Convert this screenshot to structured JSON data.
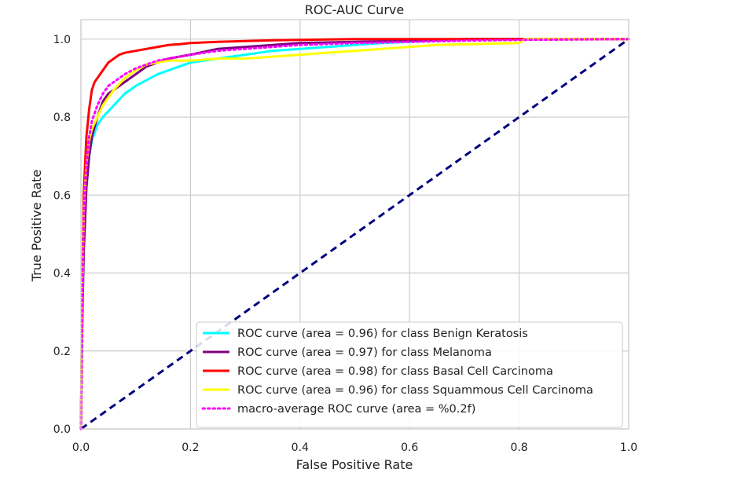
{
  "chart_data": {
    "type": "line",
    "title": "ROC-AUC Curve",
    "xlabel": "False Positive Rate",
    "ylabel": "True Positive Rate",
    "xlim": [
      0.0,
      1.0
    ],
    "ylim": [
      0.0,
      1.05
    ],
    "xticks": [
      0.0,
      0.2,
      0.4,
      0.6,
      0.8,
      1.0
    ],
    "xtick_labels": [
      "0.0",
      "0.2",
      "0.4",
      "0.6",
      "0.8",
      "1.0"
    ],
    "yticks": [
      0.0,
      0.2,
      0.4,
      0.6,
      0.8,
      1.0
    ],
    "ytick_labels": [
      "0.0",
      "0.2",
      "0.4",
      "0.6",
      "0.8",
      "1.0"
    ],
    "grid": true,
    "legend_position": "lower-right",
    "series": [
      {
        "name": "ROC curve (area = 0.96) for class Benign Keratosis",
        "color": "#00ffff",
        "style": "solid",
        "x": [
          0.0,
          0.002,
          0.005,
          0.01,
          0.015,
          0.02,
          0.03,
          0.04,
          0.06,
          0.08,
          0.1,
          0.12,
          0.14,
          0.16,
          0.18,
          0.2,
          0.25,
          0.3,
          0.35,
          0.4,
          0.45,
          0.5,
          0.55,
          0.6,
          0.65,
          0.7,
          0.8,
          1.0
        ],
        "y": [
          0.0,
          0.2,
          0.5,
          0.62,
          0.7,
          0.74,
          0.78,
          0.8,
          0.83,
          0.86,
          0.88,
          0.895,
          0.91,
          0.92,
          0.93,
          0.94,
          0.95,
          0.96,
          0.97,
          0.975,
          0.98,
          0.985,
          0.99,
          0.993,
          0.996,
          1.0,
          1.0,
          1.0
        ]
      },
      {
        "name": "ROC curve (area = 0.97) for class Melanoma",
        "color": "#800080",
        "style": "solid",
        "x": [
          0.0,
          0.002,
          0.005,
          0.01,
          0.015,
          0.02,
          0.03,
          0.04,
          0.05,
          0.06,
          0.07,
          0.08,
          0.1,
          0.12,
          0.14,
          0.16,
          0.18,
          0.2,
          0.25,
          0.3,
          0.35,
          0.4,
          0.5,
          0.6,
          0.7,
          0.8,
          1.0
        ],
        "y": [
          0.0,
          0.25,
          0.45,
          0.62,
          0.7,
          0.75,
          0.8,
          0.84,
          0.86,
          0.87,
          0.88,
          0.89,
          0.91,
          0.93,
          0.94,
          0.95,
          0.955,
          0.96,
          0.975,
          0.98,
          0.985,
          0.99,
          0.993,
          0.996,
          1.0,
          1.0,
          1.0
        ]
      },
      {
        "name": "ROC curve (area = 0.98) for class Basal Cell Carcinoma",
        "color": "#ff0000",
        "style": "solid",
        "x": [
          0.0,
          0.002,
          0.005,
          0.01,
          0.015,
          0.02,
          0.025,
          0.03,
          0.04,
          0.05,
          0.06,
          0.07,
          0.08,
          0.1,
          0.12,
          0.14,
          0.16,
          0.18,
          0.2,
          0.25,
          0.3,
          0.35,
          0.4,
          0.5,
          0.6,
          0.8,
          1.0
        ],
        "y": [
          0.0,
          0.3,
          0.6,
          0.75,
          0.82,
          0.87,
          0.89,
          0.9,
          0.92,
          0.94,
          0.95,
          0.96,
          0.965,
          0.97,
          0.975,
          0.98,
          0.985,
          0.987,
          0.99,
          0.993,
          0.995,
          0.997,
          0.998,
          1.0,
          1.0,
          1.0,
          1.0
        ]
      },
      {
        "name": "ROC curve (area = 0.96) for class Squammous Cell Carcinoma",
        "color": "#ffff00",
        "style": "solid",
        "x": [
          0.0,
          0.002,
          0.005,
          0.01,
          0.015,
          0.02,
          0.03,
          0.04,
          0.05,
          0.06,
          0.08,
          0.1,
          0.12,
          0.14,
          0.16,
          0.2,
          0.25,
          0.3,
          0.35,
          0.4,
          0.45,
          0.5,
          0.55,
          0.65,
          0.8,
          0.81,
          1.0
        ],
        "y": [
          0.0,
          0.3,
          0.55,
          0.68,
          0.74,
          0.77,
          0.8,
          0.83,
          0.85,
          0.87,
          0.9,
          0.92,
          0.935,
          0.94,
          0.945,
          0.945,
          0.95,
          0.95,
          0.955,
          0.96,
          0.965,
          0.97,
          0.975,
          0.985,
          0.99,
          1.0,
          1.0
        ]
      },
      {
        "name": "macro-average ROC curve (area = %0.2f)",
        "color": "#ff00ff",
        "style": "dotted",
        "x": [
          0.0,
          0.002,
          0.005,
          0.01,
          0.015,
          0.02,
          0.03,
          0.04,
          0.05,
          0.06,
          0.08,
          0.1,
          0.12,
          0.14,
          0.16,
          0.18,
          0.2,
          0.25,
          0.3,
          0.35,
          0.4,
          0.5,
          0.6,
          0.7,
          0.8,
          1.0
        ],
        "y": [
          0.0,
          0.27,
          0.55,
          0.68,
          0.75,
          0.79,
          0.83,
          0.86,
          0.88,
          0.89,
          0.91,
          0.925,
          0.935,
          0.945,
          0.95,
          0.955,
          0.96,
          0.97,
          0.975,
          0.98,
          0.985,
          0.99,
          0.993,
          0.996,
          0.998,
          1.0
        ]
      },
      {
        "name": "",
        "color": "#000080",
        "style": "dashed",
        "in_legend": false,
        "x": [
          0.0,
          1.0
        ],
        "y": [
          0.0,
          1.0
        ]
      }
    ]
  }
}
